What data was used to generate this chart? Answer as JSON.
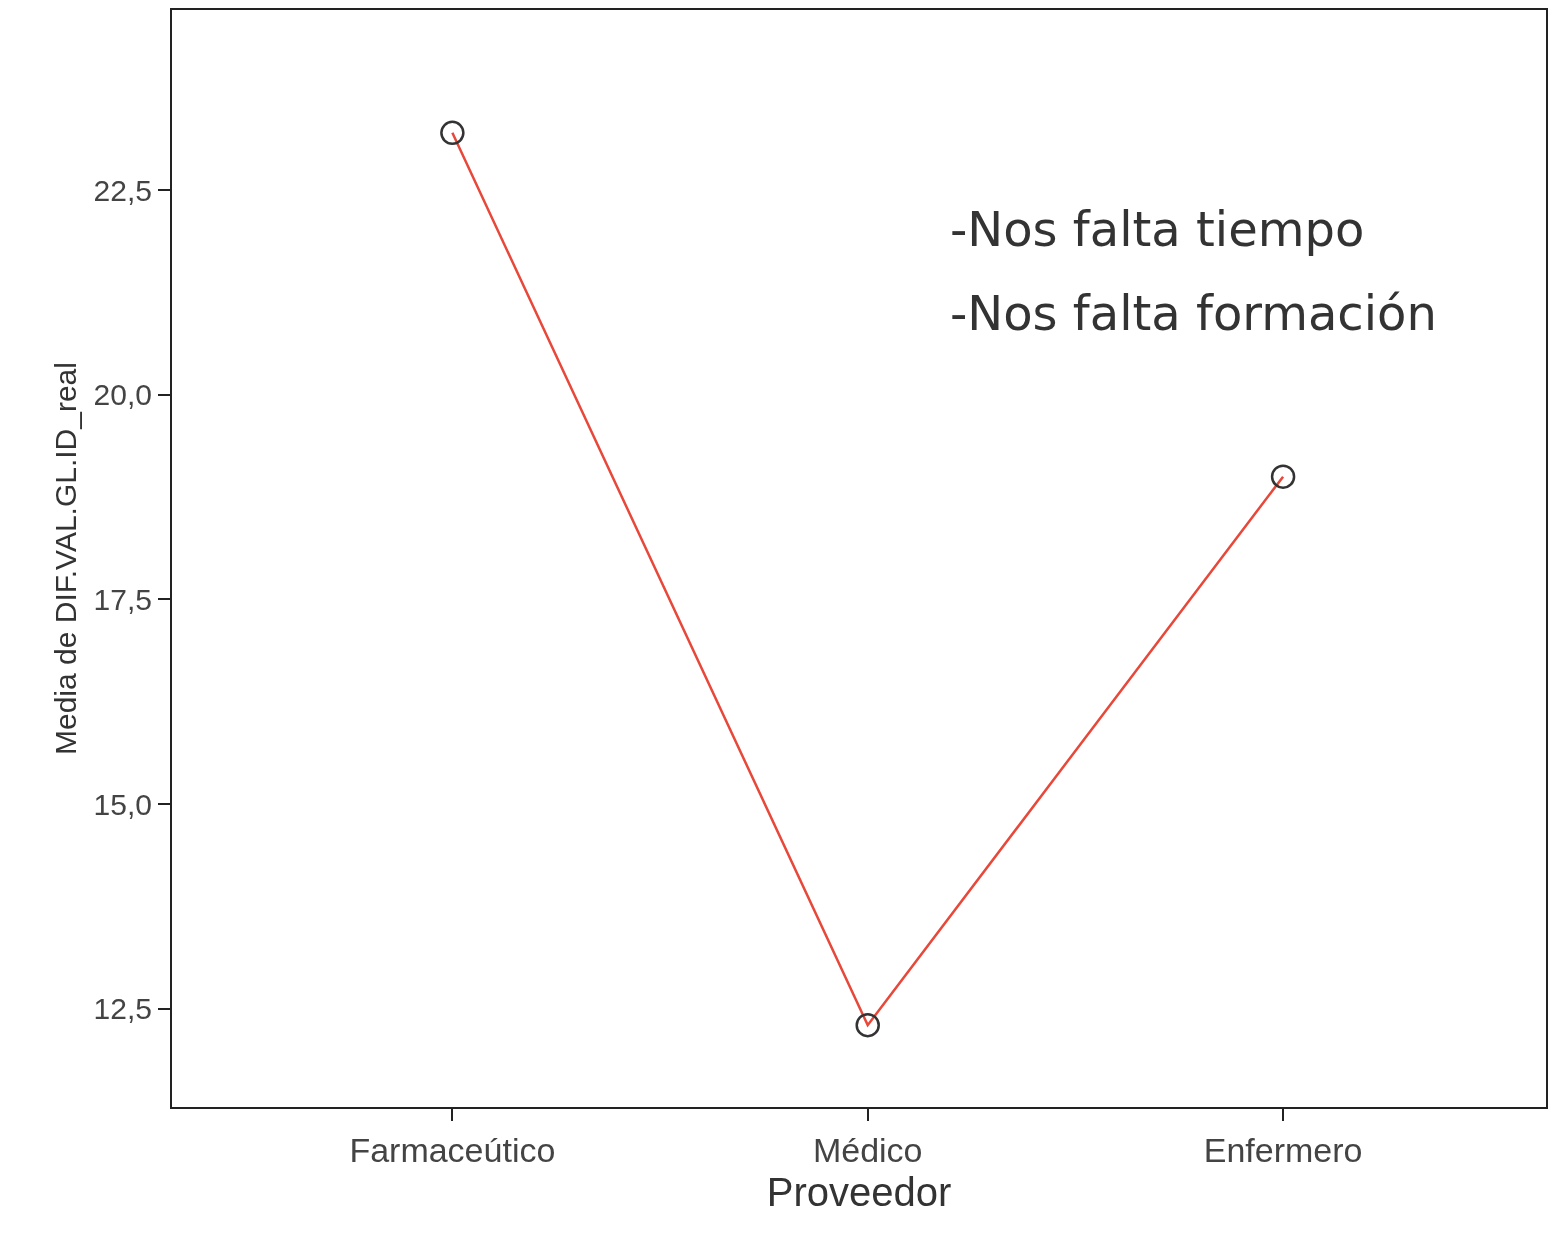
{
  "chart_data": {
    "type": "line",
    "xlabel": "Proveedor",
    "ylabel": "Media de DIF.VAL.GL.ID_real",
    "categories": [
      "Farmaceútico",
      "Médico",
      "Enfermero"
    ],
    "series": [
      {
        "color": "#e8483a",
        "values": [
          23.2,
          12.3,
          19.0
        ]
      }
    ],
    "marker": "circle",
    "line_style": "solid",
    "ylim": [
      11.3,
      24.7
    ],
    "yticks": [
      {
        "value": 12.5,
        "label": "12,5"
      },
      {
        "value": 15,
        "label": "15,0"
      },
      {
        "value": 17.5,
        "label": "17,5"
      },
      {
        "value": 20,
        "label": "20,0"
      },
      {
        "value": 22.5,
        "label": "22,5"
      }
    ],
    "annotations": [
      "-Nos falta tiempo",
      "-Nos falta formación"
    ]
  }
}
